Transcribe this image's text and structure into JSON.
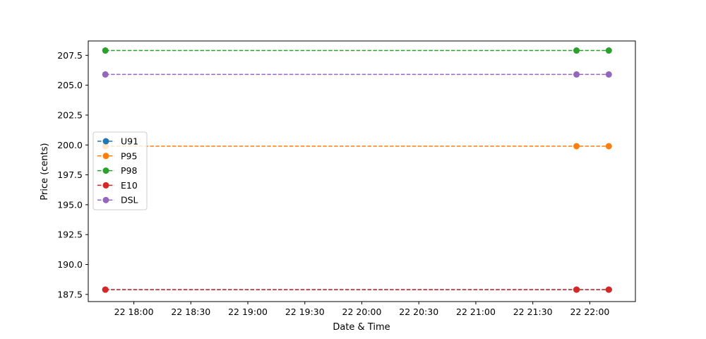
{
  "chart_data": {
    "type": "line",
    "xlabel": "Date & Time",
    "ylabel": "Price (cents)",
    "x": [
      "22 17:45",
      "22 21:53",
      "22 22:10"
    ],
    "xlim": [
      "22 17:36",
      "22 22:24"
    ],
    "ylim": [
      186.9,
      208.7
    ],
    "x_ticks": [
      "22 18:00",
      "22 18:30",
      "22 19:00",
      "22 19:30",
      "22 20:00",
      "22 20:30",
      "22 21:00",
      "22 21:30",
      "22 22:00"
    ],
    "y_ticks": [
      "187.5",
      "190.0",
      "192.5",
      "195.0",
      "197.5",
      "200.0",
      "202.5",
      "205.0",
      "207.5"
    ],
    "series": [
      {
        "name": "U91",
        "color": "#1f77b4",
        "values": [
          187.9,
          187.9,
          187.9
        ]
      },
      {
        "name": "P95",
        "color": "#ff7f0e",
        "values": [
          199.9,
          199.9,
          199.9
        ]
      },
      {
        "name": "P98",
        "color": "#2ca02c",
        "values": [
          207.9,
          207.9,
          207.9
        ]
      },
      {
        "name": "E10",
        "color": "#d62728",
        "values": [
          187.9,
          187.9,
          187.9
        ]
      },
      {
        "name": "DSL",
        "color": "#9467bd",
        "values": [
          205.9,
          205.9,
          205.9
        ]
      }
    ],
    "line_style": "dashed",
    "marker": "circle",
    "grid": false,
    "legend_position": "center-left"
  }
}
